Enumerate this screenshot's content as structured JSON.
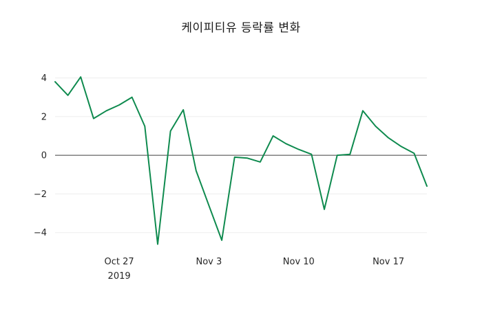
{
  "page": {
    "title": "케이피티유 등락률 변화"
  },
  "chart_data": {
    "type": "line",
    "title": "케이피티유 등락률 변화",
    "xlabel": "",
    "ylabel": "",
    "legend": "none",
    "grid": true,
    "line_color": "#0e8a4e",
    "zero_line_color": "#3d3d3d",
    "grid_color": "#ededed",
    "ylim": [
      -4.9,
      4.55
    ],
    "yticks": [
      -4,
      -2,
      0,
      2,
      4
    ],
    "x": [
      "Oct 22",
      "Oct 23",
      "Oct 24",
      "Oct 25",
      "Oct 26",
      "Oct 27",
      "Oct 28",
      "Oct 29",
      "Oct 30",
      "Oct 31",
      "Nov 1",
      "Nov 2",
      "Nov 3",
      "Nov 4",
      "Nov 5",
      "Nov 6",
      "Nov 7",
      "Nov 8",
      "Nov 9",
      "Nov 10",
      "Nov 11",
      "Nov 12",
      "Nov 13",
      "Nov 14",
      "Nov 15",
      "Nov 16",
      "Nov 17",
      "Nov 18",
      "Nov 19",
      "Nov 20"
    ],
    "series": [
      {
        "name": "등락률",
        "values": [
          3.8,
          3.1,
          4.05,
          1.9,
          2.3,
          2.6,
          3.0,
          1.5,
          -4.6,
          1.25,
          2.35,
          -0.8,
          -2.6,
          -4.4,
          -0.1,
          -0.15,
          -0.35,
          1.0,
          0.6,
          0.3,
          0.05,
          -2.8,
          0.0,
          0.05,
          2.3,
          1.5,
          0.9,
          0.45,
          0.1,
          -1.6
        ]
      }
    ],
    "xticks": [
      {
        "index": 5,
        "label": "Oct 27",
        "sublabel": "2019"
      },
      {
        "index": 12,
        "label": "Nov 3",
        "sublabel": ""
      },
      {
        "index": 19,
        "label": "Nov 10",
        "sublabel": ""
      },
      {
        "index": 26,
        "label": "Nov 17",
        "sublabel": ""
      }
    ]
  }
}
